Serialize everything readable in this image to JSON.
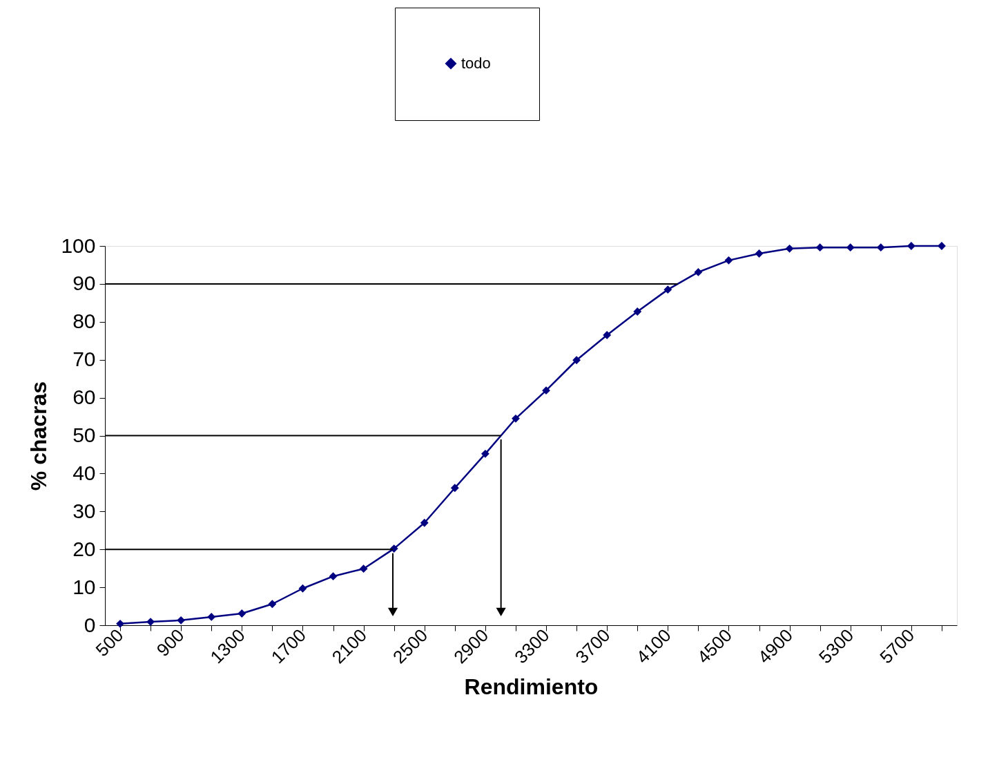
{
  "chart_data": {
    "type": "line",
    "xlabel": "Rendimiento",
    "ylabel": "% chacras",
    "categories": [
      "500",
      null,
      "900",
      null,
      "1300",
      null,
      "1700",
      null,
      "2100",
      null,
      "2500",
      null,
      "2900",
      null,
      "3300",
      null,
      "3700",
      null,
      "4100",
      null,
      "4500",
      null,
      "4900",
      null,
      "5300",
      null,
      "5700",
      null
    ],
    "series": [
      {
        "name": "todo",
        "color": "#000080",
        "values": [
          0.4,
          0.9,
          1.3,
          2.2,
          3.1,
          5.6,
          9.7,
          12.9,
          14.9,
          20.2,
          27,
          36.2,
          45.2,
          54.5,
          61.9,
          69.9,
          76.5,
          82.7,
          88.5,
          93.1,
          96.2,
          98,
          99.3,
          99.6,
          99.6,
          99.6,
          100,
          100
        ]
      }
    ],
    "ylim": [
      0,
      100
    ],
    "yticks": [
      0,
      10,
      20,
      30,
      40,
      50,
      60,
      70,
      80,
      90,
      100
    ],
    "ref_lines": [
      {
        "axis": "y",
        "value": 90,
        "color": "#000000"
      },
      {
        "axis": "y",
        "value": 50,
        "color": "#000000"
      },
      {
        "axis": "y",
        "value": 20,
        "color": "#000000"
      }
    ],
    "marker": "diamond",
    "line_style": "solid",
    "grid": false,
    "legend": "top"
  }
}
